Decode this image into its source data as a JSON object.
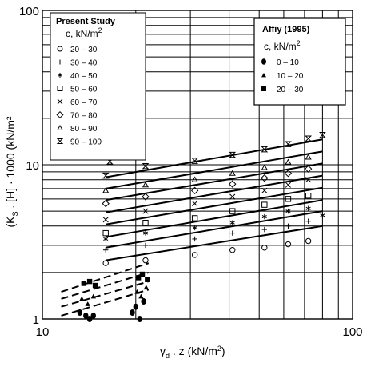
{
  "chart_data": {
    "type": "scatter",
    "xscale": "log",
    "yscale": "log",
    "xlim": [
      10,
      100
    ],
    "ylim": [
      1,
      100
    ],
    "xticks": [
      "10",
      "100"
    ],
    "yticks": [
      "1",
      "10",
      "100"
    ],
    "xlabel_symbol": "γ",
    "xlabel_sub": "d",
    "xlabel_rest": " . z (kN/m",
    "xlabel_sup": "2",
    "xlabel_close": ")",
    "ylabel": "(K",
    "ylabel_sub": "S",
    "ylabel_rest": " . [H] · 1000 (kN/m²",
    "grid": true,
    "legend_present": {
      "title": "Present Study",
      "subtitle": "c, kN/m",
      "subtitle_sup": "2",
      "items": [
        {
          "marker": "circle-open",
          "symbol": "○",
          "label": "20 – 30"
        },
        {
          "marker": "plus",
          "symbol": "+",
          "label": "30 – 40"
        },
        {
          "marker": "asterisk",
          "symbol": "*",
          "label": "40 – 50"
        },
        {
          "marker": "square-open",
          "symbol": "□",
          "label": "50 – 60"
        },
        {
          "marker": "cross",
          "symbol": "×",
          "label": "60 – 70"
        },
        {
          "marker": "diamond-open",
          "symbol": "◇",
          "label": "70 – 80"
        },
        {
          "marker": "triangle-open",
          "symbol": "△",
          "label": "80 – 90"
        },
        {
          "marker": "hourglass",
          "symbol": "⧗",
          "label": "90 – 100"
        }
      ]
    },
    "legend_affiy": {
      "title": "Affiy (1995)",
      "subtitle": "c, kN/m",
      "subtitle_sup": "2",
      "items": [
        {
          "marker": "circle-filled",
          "symbol": "●",
          "label": "0 – 10"
        },
        {
          "marker": "triangle-filled",
          "symbol": "▲",
          "label": "10 – 20"
        },
        {
          "marker": "square-filled",
          "symbol": "■",
          "label": "20 – 30"
        }
      ]
    },
    "fit_lines": [
      {
        "group": "20 – 30",
        "x": [
          16,
          80
        ],
        "y": [
          2.4,
          4.0
        ]
      },
      {
        "group": "30 – 40",
        "x": [
          16,
          80
        ],
        "y": [
          2.9,
          5.0
        ]
      },
      {
        "group": "40 – 50",
        "x": [
          16,
          80
        ],
        "y": [
          3.4,
          5.9
        ]
      },
      {
        "group": "50 – 60",
        "x": [
          16,
          80
        ],
        "y": [
          4.1,
          7.1
        ]
      },
      {
        "group": "60 – 70",
        "x": [
          16,
          80
        ],
        "y": [
          4.9,
          8.5
        ]
      },
      {
        "group": "70 – 80",
        "x": [
          16,
          80
        ],
        "y": [
          5.9,
          10.2
        ]
      },
      {
        "group": "80 – 90",
        "x": [
          16,
          80
        ],
        "y": [
          7.0,
          12.2
        ]
      },
      {
        "group": "90 – 100",
        "x": [
          16,
          80
        ],
        "y": [
          8.3,
          14.6
        ]
      }
    ],
    "affiy_lines": [
      {
        "x": [
          11.5,
          22
        ],
        "y": [
          1.05,
          1.55
        ]
      },
      {
        "x": [
          11.5,
          22
        ],
        "y": [
          1.2,
          1.75
        ]
      },
      {
        "x": [
          11.5,
          22
        ],
        "y": [
          1.35,
          2.0
        ]
      },
      {
        "x": [
          11.5,
          22
        ],
        "y": [
          1.5,
          2.3
        ]
      }
    ],
    "series": [
      {
        "name": "20 – 30",
        "marker": "circle-open",
        "points": [
          [
            16,
            2.3
          ],
          [
            21.5,
            2.4
          ],
          [
            31,
            2.6
          ],
          [
            41,
            2.8
          ],
          [
            52,
            2.9
          ],
          [
            62,
            3.05
          ],
          [
            72,
            3.2
          ]
        ]
      },
      {
        "name": "30 – 40",
        "marker": "plus",
        "points": [
          [
            16,
            2.8
          ],
          [
            21.5,
            3.0
          ],
          [
            31,
            3.3
          ],
          [
            41,
            3.6
          ],
          [
            52,
            3.8
          ],
          [
            62,
            4.0
          ],
          [
            72,
            4.3
          ]
        ]
      },
      {
        "name": "40 – 50",
        "marker": "asterisk",
        "points": [
          [
            16,
            3.3
          ],
          [
            21.5,
            3.6
          ],
          [
            31,
            3.9
          ],
          [
            41,
            4.2
          ],
          [
            52,
            4.6
          ],
          [
            62,
            5.0
          ],
          [
            72,
            5.2
          ],
          [
            80,
            4.7
          ]
        ]
      },
      {
        "name": "50 – 60",
        "marker": "square-open",
        "points": [
          [
            16,
            3.6
          ],
          [
            21.5,
            4.2
          ],
          [
            31,
            4.5
          ],
          [
            41,
            5.0
          ],
          [
            52,
            5.5
          ],
          [
            62,
            6.0
          ],
          [
            72,
            6.3
          ]
        ]
      },
      {
        "name": "60 – 70",
        "marker": "cross",
        "points": [
          [
            16,
            4.4
          ],
          [
            21.5,
            5.0
          ],
          [
            31,
            5.6
          ],
          [
            41,
            6.2
          ],
          [
            52,
            6.8
          ],
          [
            62,
            7.4
          ],
          [
            72,
            8.0
          ]
        ]
      },
      {
        "name": "70 – 80",
        "marker": "diamond-open",
        "points": [
          [
            16,
            5.6
          ],
          [
            21.5,
            6.2
          ],
          [
            31,
            6.8
          ],
          [
            41,
            7.5
          ],
          [
            52,
            8.2
          ],
          [
            62,
            8.8
          ],
          [
            72,
            9.4
          ]
        ]
      },
      {
        "name": "80 – 90",
        "marker": "triangle-open",
        "points": [
          [
            16,
            6.8
          ],
          [
            21.5,
            7.4
          ],
          [
            31,
            8.0
          ],
          [
            41,
            8.8
          ],
          [
            52,
            9.6
          ],
          [
            62,
            10.4
          ],
          [
            72,
            11.2
          ]
        ]
      },
      {
        "name": "90 – 100",
        "marker": "hourglass",
        "points": [
          [
            16,
            8.5
          ],
          [
            16.5,
            10.5
          ],
          [
            21.5,
            9.8
          ],
          [
            31,
            10.6
          ],
          [
            41,
            11.6
          ],
          [
            52,
            12.6
          ],
          [
            62,
            13.6
          ],
          [
            72,
            14.8
          ],
          [
            80,
            15.6
          ]
        ]
      },
      {
        "name": "0 – 10",
        "marker": "circle-filled",
        "points": [
          [
            13.2,
            1.1
          ],
          [
            13.8,
            1.05
          ],
          [
            14.2,
            1.0
          ],
          [
            14.6,
            1.05
          ],
          [
            19.5,
            1.1
          ],
          [
            20.0,
            1.2
          ],
          [
            20.6,
            1.0
          ],
          [
            21.2,
            1.3
          ]
        ]
      },
      {
        "name": "10 – 20",
        "marker": "triangle-filled",
        "points": [
          [
            13.4,
            1.35
          ],
          [
            14.0,
            1.25
          ],
          [
            14.6,
            1.4
          ],
          [
            20.2,
            1.5
          ],
          [
            20.8,
            1.4
          ],
          [
            21.6,
            1.6
          ]
        ]
      },
      {
        "name": "20 – 30",
        "marker": "square-filled",
        "points": [
          [
            13.6,
            1.7
          ],
          [
            14.2,
            1.75
          ],
          [
            14.8,
            1.65
          ],
          [
            20.4,
            1.85
          ],
          [
            21.0,
            1.95
          ],
          [
            21.8,
            1.8
          ]
        ]
      }
    ]
  }
}
